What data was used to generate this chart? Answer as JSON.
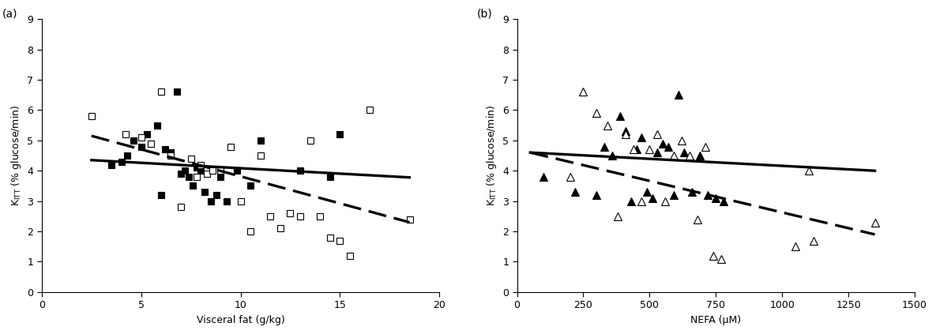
{
  "panel_a": {
    "label": "(a)",
    "xlabel": "Visceral fat (g/kg)",
    "xlim": [
      0,
      20
    ],
    "ylim": [
      0,
      9
    ],
    "xticks": [
      0,
      5,
      10,
      15,
      20
    ],
    "yticks": [
      0,
      1,
      2,
      3,
      4,
      5,
      6,
      7,
      8,
      9
    ],
    "filled_squares_x": [
      3.5,
      4.0,
      4.3,
      4.6,
      5.0,
      5.3,
      5.5,
      5.8,
      6.0,
      6.2,
      6.5,
      6.8,
      7.0,
      7.2,
      7.4,
      7.6,
      7.8,
      8.0,
      8.2,
      8.5,
      8.8,
      9.0,
      9.3,
      9.8,
      10.5,
      11.0,
      13.0,
      14.5,
      15.0
    ],
    "filled_squares_y": [
      4.2,
      4.3,
      4.5,
      5.0,
      4.8,
      5.2,
      4.9,
      5.5,
      3.2,
      4.7,
      4.6,
      6.6,
      3.9,
      4.0,
      3.8,
      3.5,
      4.1,
      4.0,
      3.3,
      3.0,
      3.2,
      3.8,
      3.0,
      4.0,
      3.5,
      5.0,
      4.0,
      3.8,
      5.2
    ],
    "open_squares_x": [
      2.5,
      4.2,
      5.0,
      5.5,
      6.0,
      6.5,
      7.0,
      7.5,
      7.8,
      8.0,
      8.3,
      8.6,
      9.0,
      9.5,
      10.0,
      10.5,
      11.0,
      11.5,
      12.0,
      12.5,
      13.0,
      13.5,
      14.0,
      14.5,
      15.0,
      15.5,
      16.5,
      18.5
    ],
    "open_squares_y": [
      5.8,
      5.2,
      5.1,
      4.9,
      6.6,
      4.5,
      2.8,
      4.4,
      3.8,
      4.2,
      3.9,
      4.0,
      4.0,
      4.8,
      3.0,
      2.0,
      4.5,
      2.5,
      2.1,
      2.6,
      2.5,
      5.0,
      2.5,
      1.8,
      1.7,
      1.2,
      6.0,
      2.4
    ],
    "solid_line_x": [
      2.5,
      18.5
    ],
    "solid_line_y": [
      4.35,
      3.78
    ],
    "dashed_line_x": [
      2.5,
      18.5
    ],
    "dashed_line_y": [
      5.15,
      2.3
    ]
  },
  "panel_b": {
    "label": "(b)",
    "xlabel": "NEFA (μM)",
    "xlim": [
      0,
      1500
    ],
    "ylim": [
      0,
      9
    ],
    "xticks": [
      0,
      250,
      500,
      750,
      1000,
      1250,
      1500
    ],
    "yticks": [
      0,
      1,
      2,
      3,
      4,
      5,
      6,
      7,
      8,
      9
    ],
    "filled_triangles_x": [
      100,
      220,
      300,
      330,
      360,
      390,
      410,
      430,
      450,
      470,
      490,
      510,
      530,
      550,
      570,
      590,
      610,
      630,
      660,
      690,
      720,
      750,
      780
    ],
    "filled_triangles_y": [
      3.8,
      3.3,
      3.2,
      4.8,
      4.5,
      5.8,
      5.3,
      3.0,
      4.7,
      5.1,
      3.3,
      3.1,
      4.6,
      4.9,
      4.8,
      3.2,
      6.5,
      4.6,
      3.3,
      4.5,
      3.2,
      3.1,
      3.0
    ],
    "open_triangles_x": [
      200,
      250,
      300,
      340,
      380,
      410,
      440,
      470,
      500,
      530,
      560,
      590,
      620,
      650,
      680,
      710,
      740,
      770,
      1050,
      1100,
      1120,
      1350
    ],
    "open_triangles_y": [
      3.8,
      6.6,
      5.9,
      5.5,
      2.5,
      5.2,
      4.7,
      3.0,
      4.7,
      5.2,
      3.0,
      4.5,
      5.0,
      4.5,
      2.4,
      4.8,
      1.2,
      1.1,
      1.5,
      4.0,
      1.7,
      2.3
    ],
    "solid_line_x": [
      50,
      1350
    ],
    "solid_line_y": [
      4.6,
      4.0
    ],
    "dashed_line_x": [
      50,
      1350
    ],
    "dashed_line_y": [
      4.6,
      1.9
    ]
  },
  "ylabel": "K_{ITT} (% glucose/min)",
  "marker_size": 6,
  "triangle_size": 7,
  "linewidth": 1.7,
  "font_size": 9,
  "label_font_size": 9,
  "panel_label_size": 10,
  "color": "#000000",
  "bg_color": "#ffffff"
}
